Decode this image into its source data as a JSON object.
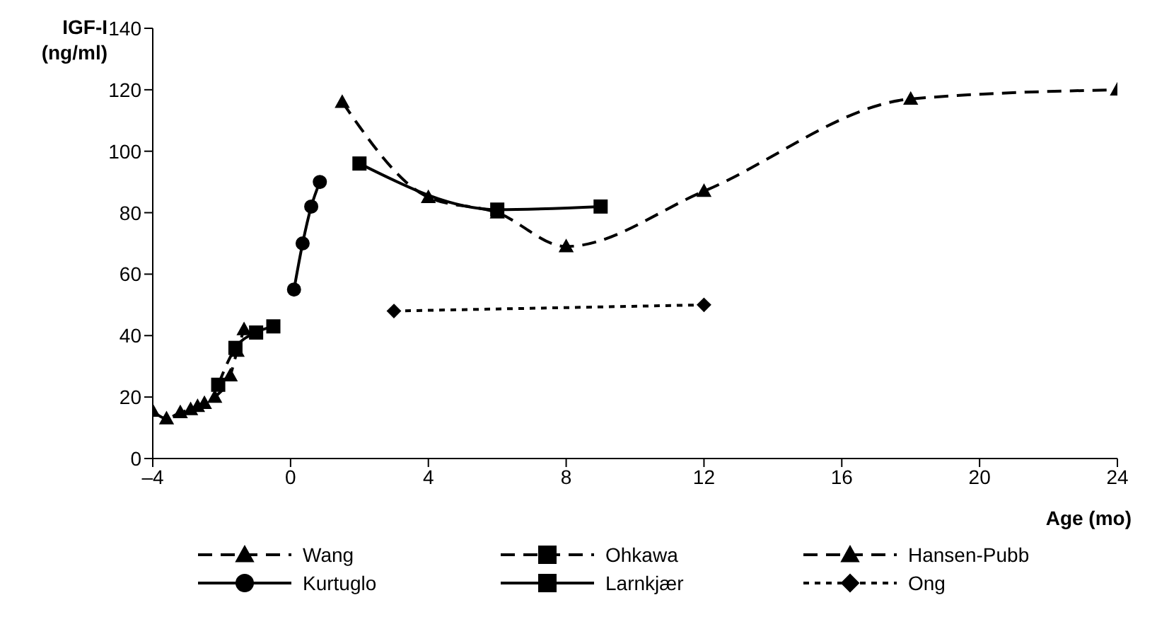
{
  "chart_data": {
    "type": "line",
    "xlabel": "Age (mo)",
    "ylabel": "IGF-I (ng/ml)",
    "xlim": [
      -4,
      24
    ],
    "xticks": [
      {
        "value": -4,
        "label": "–4"
      },
      0,
      4,
      8,
      12,
      16,
      20,
      24
    ],
    "ylim": [
      0,
      140
    ],
    "yticks": [
      0,
      20,
      40,
      60,
      80,
      100,
      120,
      140
    ],
    "grid": false,
    "legend": "bottom",
    "series": [
      {
        "name": "Wang",
        "color": "#000000",
        "marker": "triangle",
        "line_style": "dashed",
        "x": [
          1.5,
          4,
          6,
          8,
          12,
          18,
          24
        ],
        "values": [
          116,
          85,
          80,
          69,
          87,
          117,
          120
        ]
      },
      {
        "name": "Ohkawa",
        "color": "#000000",
        "marker": "square",
        "line_style": "dashed",
        "x": [
          -2.1,
          -1.6,
          -1,
          -0.5
        ],
        "values": [
          24,
          36,
          41,
          43
        ]
      },
      {
        "name": "Hansen-Pubb",
        "color": "#000000",
        "marker": "triangle",
        "line_style": "dashed",
        "x": [
          -4,
          -3.6,
          -3.2,
          -2.9,
          -2.7,
          -2.5,
          -2.2,
          -1.75,
          -1.55,
          -1.35
        ],
        "values": [
          15.5,
          13,
          15,
          16,
          17,
          18,
          20,
          27,
          35,
          42
        ]
      },
      {
        "name": "Kurtuglo",
        "color": "#000000",
        "marker": "circle",
        "line_style": "solid",
        "x": [
          0.1,
          0.35,
          0.6,
          0.85
        ],
        "values": [
          55,
          70,
          82,
          90
        ]
      },
      {
        "name": "Larnkjær",
        "color": "#000000",
        "marker": "square",
        "line_style": "solid",
        "x": [
          2,
          6,
          9
        ],
        "values": [
          96,
          81,
          82
        ]
      },
      {
        "name": "Ong",
        "color": "#000000",
        "marker": "diamond",
        "line_style": "dotted",
        "x": [
          3,
          12
        ],
        "values": [
          48,
          50
        ]
      }
    ]
  }
}
